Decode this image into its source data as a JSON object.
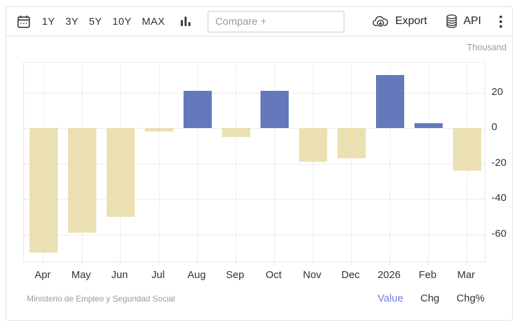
{
  "toolbar": {
    "ranges": [
      "1Y",
      "3Y",
      "5Y",
      "10Y",
      "MAX"
    ],
    "compare_placeholder": "Compare +",
    "export_label": "Export",
    "api_label": "API",
    "icons": {
      "calendar": "calendar-icon",
      "chart_type": "bar-chart-icon",
      "export": "cloud-download-icon",
      "api": "database-icon",
      "menu": "kebab-menu-icon"
    }
  },
  "chart_data": {
    "type": "bar",
    "title": "",
    "unit_label": "Thousand",
    "categories": [
      "Apr",
      "May",
      "Jun",
      "Jul",
      "Aug",
      "Sep",
      "Oct",
      "Nov",
      "Dec",
      "2026",
      "Feb",
      "Mar"
    ],
    "values": [
      -70,
      -59,
      -50,
      -2,
      21,
      -5,
      21,
      -19,
      -17,
      30,
      3,
      -24
    ],
    "y_ticks": [
      20,
      0,
      -20,
      -40,
      -60
    ],
    "ylim": [
      -76,
      37
    ],
    "yaxis_position": "right",
    "grid": "dotted",
    "legend": "none",
    "colors": {
      "positive": "#6379bb",
      "negative": "#ebe0b2"
    }
  },
  "footer": {
    "source": "Ministerio de Empleo y Seguridad Social",
    "links": [
      {
        "label": "Value",
        "active": true
      },
      {
        "label": "Chg",
        "active": false
      },
      {
        "label": "Chg%",
        "active": false
      }
    ]
  }
}
